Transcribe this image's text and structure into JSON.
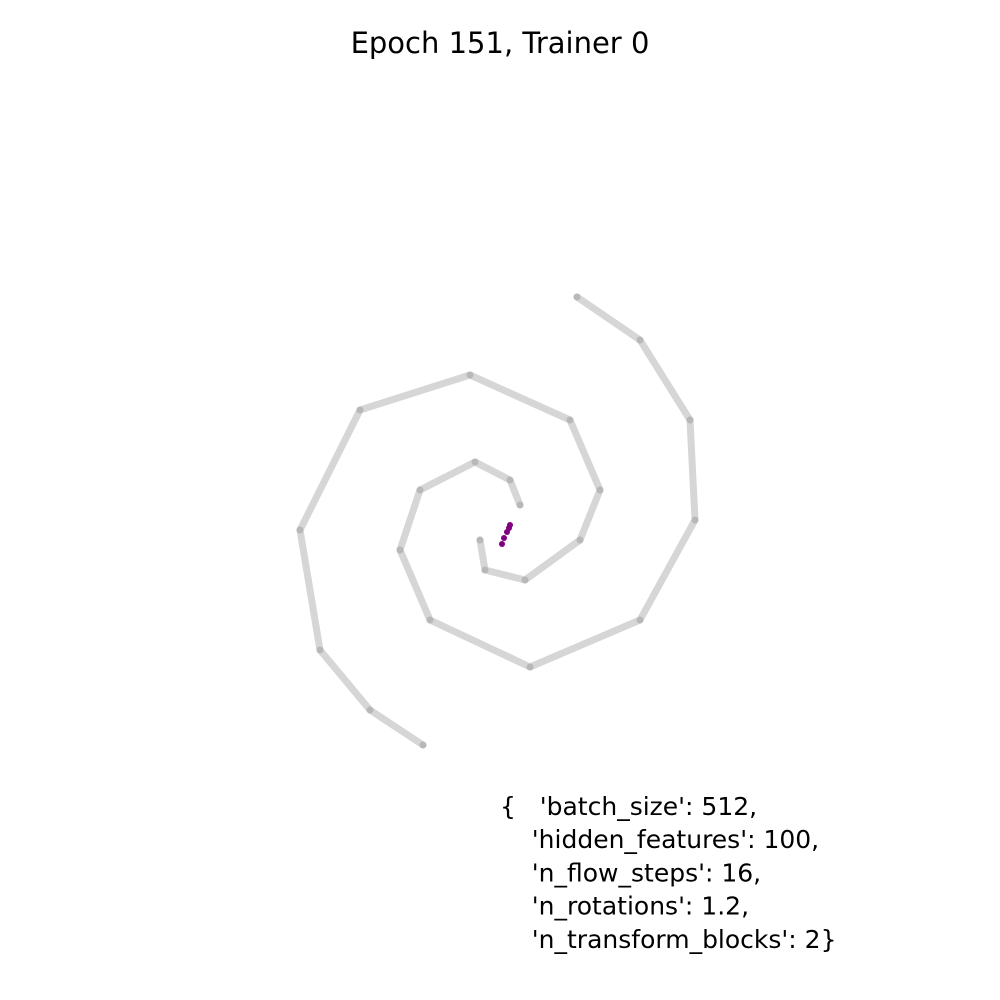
{
  "chart_data": {
    "type": "scatter",
    "title": "Epoch 151, Trainer 0",
    "annotation": [
      "{   'batch_size': 512,",
      "    'hidden_features': 100,",
      "    'n_flow_steps': 16,",
      "    'n_rotations': 1.2,",
      "    'n_transform_blocks': 2}"
    ],
    "xlim": [
      -4,
      4
    ],
    "ylim": [
      -4,
      4
    ],
    "series": [
      {
        "color": "#999999",
        "x": [
          0.2,
          0.1,
          -0.25,
          -0.8,
          -1.0,
          -0.7,
          0.3,
          1.4,
          1.95,
          1.9,
          1.4,
          0.77
        ],
        "values": [
          0.15,
          0.4,
          0.58,
          0.3,
          -0.3,
          -1.0,
          -1.47,
          -1.0,
          0,
          1.0,
          1.8,
          2.23
        ]
      },
      {
        "color": "#999999",
        "x": [
          -0.2,
          -0.15,
          0.25,
          0.8,
          1.0,
          0.7,
          -0.3,
          -1.4,
          -2.0,
          -1.8,
          -1.3,
          -0.77
        ],
        "values": [
          -0.2,
          -0.5,
          -0.6,
          -0.2,
          0.3,
          1.0,
          1.45,
          1.1,
          -0.1,
          -1.3,
          -1.9,
          -2.25
        ]
      },
      {
        "color": "#800080",
        "x": [
          0.1,
          0.09,
          0.07,
          0.04,
          0.02
        ],
        "values": [
          -0.05,
          -0.08,
          -0.12,
          -0.18,
          -0.24
        ]
      }
    ]
  }
}
